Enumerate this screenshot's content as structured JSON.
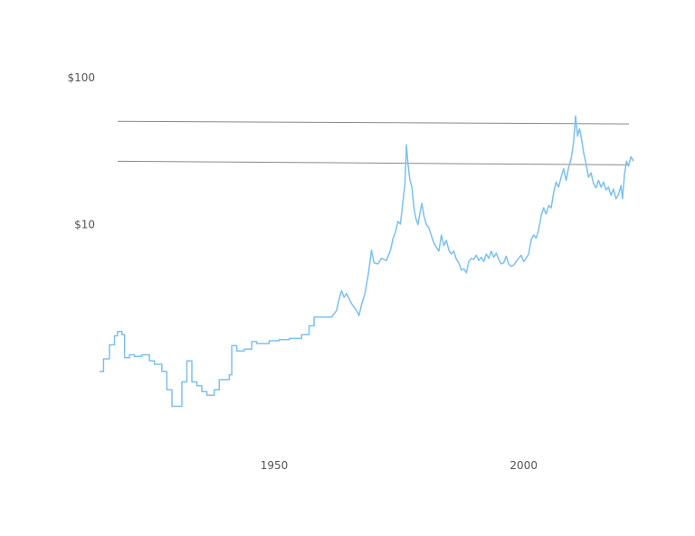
{
  "chart_data": {
    "type": "line",
    "title": "",
    "xlabel": "",
    "ylabel": "",
    "x_scale": "linear",
    "y_scale": "log",
    "xlim": [
      1915,
      2022
    ],
    "ylim": [
      0.3,
      100
    ],
    "x_ticks": [
      {
        "value": 1950,
        "label": "1950"
      },
      {
        "value": 2000,
        "label": "2000"
      }
    ],
    "y_ticks": [
      {
        "value": 100,
        "label": "$100"
      },
      {
        "value": 10,
        "label": "$10"
      }
    ],
    "grid": false,
    "legend": "none",
    "line_color": "#7cc1ee",
    "reference_line_color": "#888888",
    "reference_lines": [
      {
        "y_start": 50.5,
        "y_end": 48.5
      },
      {
        "y_start": 27.0,
        "y_end": 25.5
      }
    ],
    "series": [
      {
        "values": [
          [
            1915.0,
            1.0
          ],
          [
            1915.8,
            1.0
          ],
          [
            1915.8,
            1.22
          ],
          [
            1917.0,
            1.22
          ],
          [
            1917.0,
            1.52
          ],
          [
            1918.0,
            1.52
          ],
          [
            1918.0,
            1.75
          ],
          [
            1918.6,
            1.75
          ],
          [
            1918.6,
            1.87
          ],
          [
            1919.5,
            1.87
          ],
          [
            1919.5,
            1.78
          ],
          [
            1920.0,
            1.78
          ],
          [
            1920.0,
            1.24
          ],
          [
            1921.0,
            1.24
          ],
          [
            1921.0,
            1.3
          ],
          [
            1922.0,
            1.3
          ],
          [
            1922.0,
            1.27
          ],
          [
            1923.5,
            1.27
          ],
          [
            1923.5,
            1.3
          ],
          [
            1925.0,
            1.3
          ],
          [
            1925.0,
            1.18
          ],
          [
            1926.0,
            1.18
          ],
          [
            1926.0,
            1.12
          ],
          [
            1927.5,
            1.12
          ],
          [
            1927.5,
            1.0
          ],
          [
            1928.5,
            1.0
          ],
          [
            1928.5,
            0.75
          ],
          [
            1929.5,
            0.75
          ],
          [
            1929.5,
            0.58
          ],
          [
            1931.5,
            0.58
          ],
          [
            1931.5,
            0.85
          ],
          [
            1932.5,
            0.85
          ],
          [
            1932.5,
            1.18
          ],
          [
            1933.5,
            1.18
          ],
          [
            1933.5,
            0.85
          ],
          [
            1934.5,
            0.85
          ],
          [
            1934.5,
            0.8
          ],
          [
            1935.5,
            0.8
          ],
          [
            1935.5,
            0.73
          ],
          [
            1936.5,
            0.73
          ],
          [
            1936.5,
            0.69
          ],
          [
            1938.0,
            0.69
          ],
          [
            1938.0,
            0.75
          ],
          [
            1939.0,
            0.75
          ],
          [
            1939.0,
            0.88
          ],
          [
            1941.0,
            0.88
          ],
          [
            1941.0,
            0.95
          ],
          [
            1941.5,
            0.95
          ],
          [
            1941.5,
            1.5
          ],
          [
            1942.5,
            1.5
          ],
          [
            1942.5,
            1.38
          ],
          [
            1944.0,
            1.38
          ],
          [
            1944.0,
            1.42
          ],
          [
            1945.5,
            1.42
          ],
          [
            1945.5,
            1.6
          ],
          [
            1946.5,
            1.6
          ],
          [
            1946.5,
            1.55
          ],
          [
            1949.0,
            1.55
          ],
          [
            1949.0,
            1.62
          ],
          [
            1951.0,
            1.62
          ],
          [
            1951.0,
            1.65
          ],
          [
            1953.0,
            1.65
          ],
          [
            1953.0,
            1.68
          ],
          [
            1955.5,
            1.68
          ],
          [
            1955.5,
            1.78
          ],
          [
            1957.0,
            1.78
          ],
          [
            1957.0,
            2.05
          ],
          [
            1958.0,
            2.05
          ],
          [
            1958.0,
            2.35
          ],
          [
            1961.5,
            2.35
          ],
          [
            1962.5,
            2.6
          ],
          [
            1963.0,
            3.1
          ],
          [
            1963.5,
            3.55
          ],
          [
            1964.0,
            3.2
          ],
          [
            1964.5,
            3.4
          ],
          [
            1965.5,
            2.9
          ],
          [
            1966.5,
            2.6
          ],
          [
            1967.0,
            2.4
          ],
          [
            1967.5,
            2.85
          ],
          [
            1968.2,
            3.4
          ],
          [
            1968.8,
            4.5
          ],
          [
            1969.2,
            5.6
          ],
          [
            1969.5,
            6.7
          ],
          [
            1970.0,
            5.5
          ],
          [
            1970.8,
            5.4
          ],
          [
            1971.5,
            5.9
          ],
          [
            1972.5,
            5.7
          ],
          [
            1973.3,
            6.7
          ],
          [
            1973.8,
            8.0
          ],
          [
            1974.3,
            8.9
          ],
          [
            1974.8,
            10.5
          ],
          [
            1975.3,
            10.1
          ],
          [
            1975.8,
            14.5
          ],
          [
            1976.2,
            19.0
          ],
          [
            1976.5,
            35.0
          ],
          [
            1976.8,
            26.0
          ],
          [
            1977.2,
            20.0
          ],
          [
            1977.6,
            18.0
          ],
          [
            1978.0,
            13.0
          ],
          [
            1978.4,
            11.0
          ],
          [
            1978.8,
            10.0
          ],
          [
            1979.3,
            12.5
          ],
          [
            1979.6,
            14.0
          ],
          [
            1980.0,
            11.5
          ],
          [
            1980.5,
            10.0
          ],
          [
            1981.0,
            9.5
          ],
          [
            1981.5,
            8.4
          ],
          [
            1982.0,
            7.5
          ],
          [
            1982.5,
            7.0
          ],
          [
            1983.0,
            6.6
          ],
          [
            1983.5,
            8.5
          ],
          [
            1984.0,
            7.2
          ],
          [
            1984.5,
            7.8
          ],
          [
            1985.0,
            6.7
          ],
          [
            1985.5,
            6.3
          ],
          [
            1986.0,
            6.6
          ],
          [
            1986.5,
            5.8
          ],
          [
            1987.0,
            5.5
          ],
          [
            1987.5,
            4.9
          ],
          [
            1988.0,
            5.0
          ],
          [
            1988.5,
            4.7
          ],
          [
            1989.0,
            5.6
          ],
          [
            1989.5,
            5.9
          ],
          [
            1990.0,
            5.8
          ],
          [
            1990.5,
            6.2
          ],
          [
            1991.0,
            5.7
          ],
          [
            1991.5,
            6.0
          ],
          [
            1992.0,
            5.6
          ],
          [
            1992.5,
            6.3
          ],
          [
            1993.0,
            5.9
          ],
          [
            1993.5,
            6.6
          ],
          [
            1994.0,
            6.0
          ],
          [
            1994.5,
            6.4
          ],
          [
            1995.0,
            5.8
          ],
          [
            1995.5,
            5.4
          ],
          [
            1996.0,
            5.5
          ],
          [
            1996.5,
            6.1
          ],
          [
            1997.0,
            5.4
          ],
          [
            1997.5,
            5.2
          ],
          [
            1998.0,
            5.3
          ],
          [
            1998.5,
            5.6
          ],
          [
            1999.0,
            5.9
          ],
          [
            1999.5,
            6.2
          ],
          [
            2000.0,
            5.6
          ],
          [
            2000.5,
            5.9
          ],
          [
            2001.0,
            6.3
          ],
          [
            2001.5,
            7.9
          ],
          [
            2002.0,
            8.5
          ],
          [
            2002.5,
            8.1
          ],
          [
            2003.0,
            9.2
          ],
          [
            2003.5,
            11.5
          ],
          [
            2004.0,
            13.0
          ],
          [
            2004.5,
            11.8
          ],
          [
            2005.0,
            13.5
          ],
          [
            2005.5,
            13.0
          ],
          [
            2006.0,
            16.5
          ],
          [
            2006.5,
            19.5
          ],
          [
            2007.0,
            18.0
          ],
          [
            2007.5,
            21.0
          ],
          [
            2008.0,
            24.0
          ],
          [
            2008.5,
            20.0
          ],
          [
            2009.0,
            24.5
          ],
          [
            2009.5,
            28.0
          ],
          [
            2010.0,
            36.0
          ],
          [
            2010.4,
            55.0
          ],
          [
            2010.8,
            40.0
          ],
          [
            2011.2,
            45.0
          ],
          [
            2011.6,
            38.0
          ],
          [
            2012.0,
            31.0
          ],
          [
            2012.5,
            26.0
          ],
          [
            2013.0,
            21.0
          ],
          [
            2013.5,
            22.5
          ],
          [
            2014.0,
            19.0
          ],
          [
            2014.5,
            17.8
          ],
          [
            2015.0,
            20.0
          ],
          [
            2015.5,
            18.0
          ],
          [
            2016.0,
            19.5
          ],
          [
            2016.5,
            17.2
          ],
          [
            2017.0,
            18.0
          ],
          [
            2017.5,
            15.8
          ],
          [
            2018.0,
            17.5
          ],
          [
            2018.5,
            15.0
          ],
          [
            2019.0,
            16.0
          ],
          [
            2019.5,
            18.5
          ],
          [
            2019.8,
            15.0
          ],
          [
            2020.2,
            22.0
          ],
          [
            2020.6,
            27.0
          ],
          [
            2021.0,
            25.0
          ],
          [
            2021.5,
            29.0
          ],
          [
            2022.0,
            27.0
          ]
        ]
      }
    ]
  }
}
